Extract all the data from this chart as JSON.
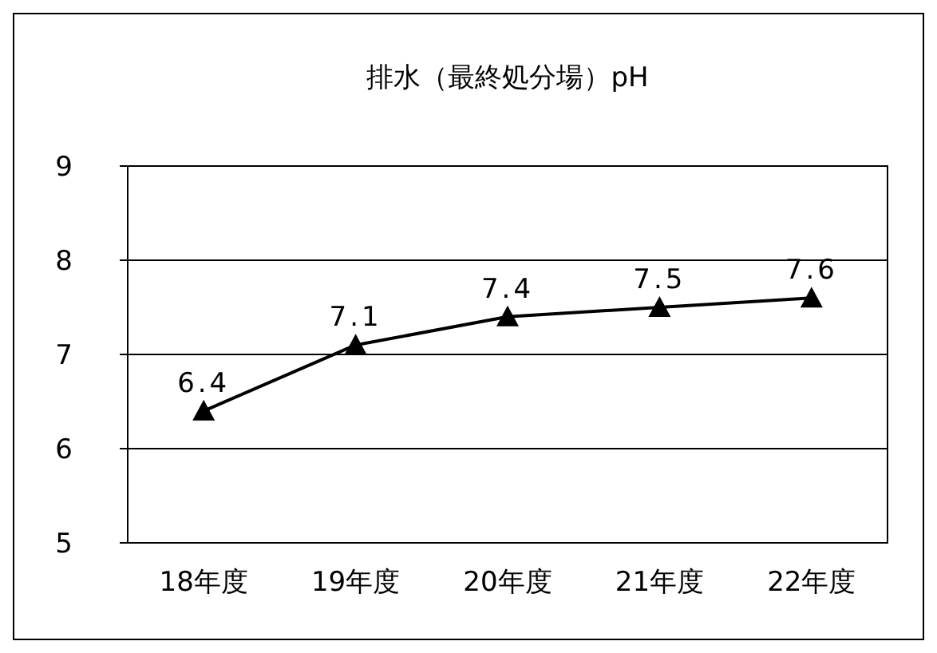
{
  "chart_data": {
    "type": "line",
    "title": "排水（最終処分場）pH",
    "categories": [
      "18年度",
      "19年度",
      "20年度",
      "21年度",
      "22年度"
    ],
    "values": [
      6.4,
      7.1,
      7.4,
      7.5,
      7.6
    ],
    "color": "#000000",
    "ylim": [
      5,
      9
    ],
    "yticks": [
      5,
      6,
      7,
      8,
      9
    ],
    "grid": "y",
    "marker": "triangle",
    "data_labels": true
  }
}
